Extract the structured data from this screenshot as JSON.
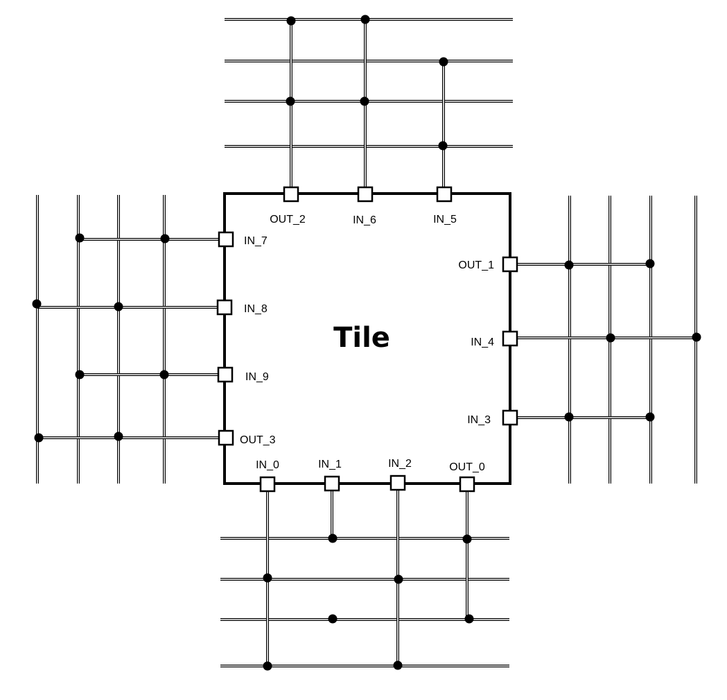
{
  "tile": {
    "title": "Tile"
  },
  "pins": {
    "top": [
      "OUT_2",
      "IN_6",
      "IN_5"
    ],
    "bottom": [
      "IN_0",
      "IN_1",
      "IN_2",
      "OUT_0"
    ],
    "left": [
      "IN_7",
      "IN_8",
      "IN_9",
      "OUT_3"
    ],
    "right": [
      "OUT_1",
      "IN_4",
      "IN_3"
    ]
  },
  "colors": {
    "line": "#000000",
    "background": "#ffffff"
  }
}
